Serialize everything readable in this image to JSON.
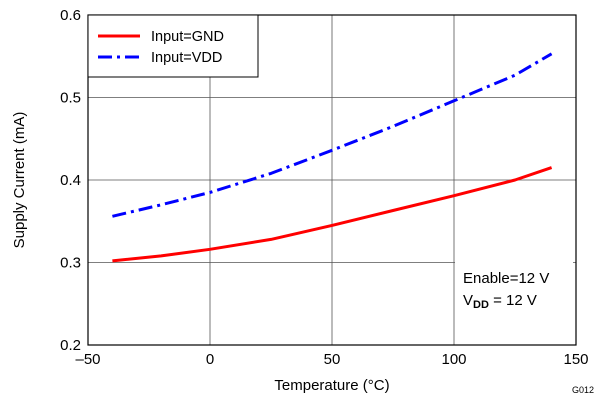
{
  "chart_data": {
    "type": "line",
    "xlabel": "Temperature (°C)",
    "ylabel": "Supply Current (mA)",
    "xlim": [
      -50,
      150
    ],
    "ylim": [
      0.2,
      0.6
    ],
    "xticks": [
      -50,
      0,
      50,
      100,
      150
    ],
    "yticks": [
      0.2,
      0.3,
      0.4,
      0.5,
      0.6
    ],
    "x_tick_labels": [
      "–50",
      "0",
      "50",
      "100",
      "150"
    ],
    "y_tick_labels": [
      "0.2",
      "0.3",
      "0.4",
      "0.5",
      "0.6"
    ],
    "grid": true,
    "legend_position": "top-left",
    "series": [
      {
        "name": "Input=GND",
        "color": "#ff0000",
        "style": "solid",
        "x": [
          -40,
          -20,
          0,
          25,
          50,
          75,
          100,
          125,
          140
        ],
        "y": [
          0.302,
          0.308,
          0.316,
          0.328,
          0.345,
          0.363,
          0.381,
          0.4,
          0.415
        ]
      },
      {
        "name": "Input=VDD",
        "color": "#0000ff",
        "style": "dash-dot",
        "x": [
          -40,
          -20,
          0,
          25,
          50,
          75,
          100,
          125,
          140
        ],
        "y": [
          0.356,
          0.37,
          0.385,
          0.408,
          0.436,
          0.465,
          0.496,
          0.527,
          0.553
        ]
      }
    ],
    "annotation": {
      "line1": "Enable=12 V",
      "line2_prefix": "V",
      "line2_sub": "DD",
      "line2_suffix": " = 12 V"
    },
    "figure_id": "G012"
  }
}
